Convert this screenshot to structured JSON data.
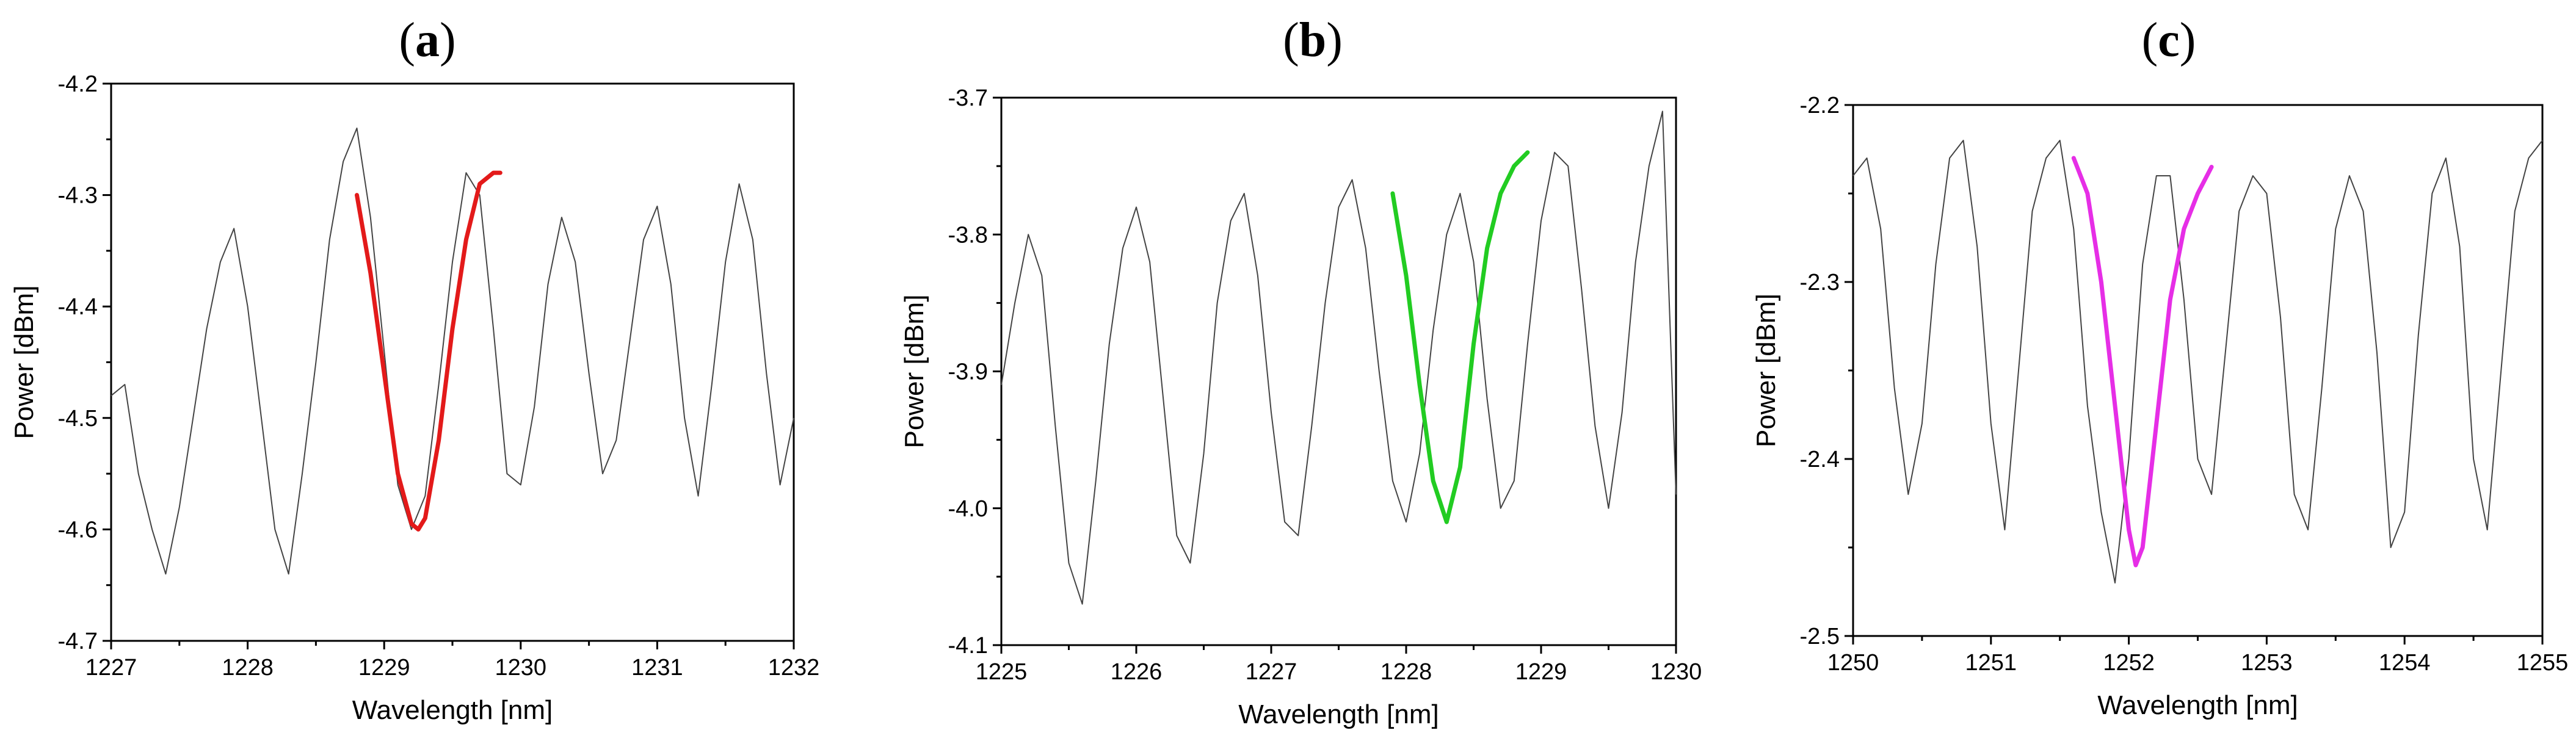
{
  "chart_data": [
    {
      "type": "line",
      "panel_label": "a",
      "xlabel": "Wavelength [nm]",
      "ylabel": "Power [dBm]",
      "xlim": [
        1227,
        1232
      ],
      "ylim": [
        -4.7,
        -4.2
      ],
      "xticks": [
        1227,
        1228,
        1229,
        1230,
        1231,
        1232
      ],
      "yticks": [
        -4.7,
        -4.6,
        -4.5,
        -4.4,
        -4.3,
        -4.2
      ],
      "xtick_labels": [
        "1227",
        "1228",
        "1229",
        "1230",
        "1231",
        "1232"
      ],
      "ytick_labels": [
        "-4.7",
        "-4.6",
        "-4.5",
        "-4.4",
        "-4.3",
        "-4.2"
      ],
      "grid": false,
      "series": [
        {
          "role": "measured",
          "color": "#444444",
          "x": [
            1227.0,
            1227.1,
            1227.2,
            1227.3,
            1227.4,
            1227.5,
            1227.6,
            1227.7,
            1227.8,
            1227.9,
            1228.0,
            1228.1,
            1228.2,
            1228.3,
            1228.4,
            1228.5,
            1228.6,
            1228.7,
            1228.8,
            1228.9,
            1229.0,
            1229.1,
            1229.2,
            1229.3,
            1229.4,
            1229.5,
            1229.6,
            1229.7,
            1229.8,
            1229.9,
            1230.0,
            1230.1,
            1230.2,
            1230.3,
            1230.4,
            1230.5,
            1230.6,
            1230.7,
            1230.8,
            1230.9,
            1231.0,
            1231.1,
            1231.2,
            1231.3,
            1231.4,
            1231.5,
            1231.6,
            1231.7,
            1231.8,
            1231.9,
            1232.0
          ],
          "y": [
            -4.48,
            -4.47,
            -4.55,
            -4.6,
            -4.64,
            -4.58,
            -4.5,
            -4.42,
            -4.36,
            -4.33,
            -4.4,
            -4.5,
            -4.6,
            -4.64,
            -4.55,
            -4.45,
            -4.34,
            -4.27,
            -4.24,
            -4.32,
            -4.44,
            -4.56,
            -4.6,
            -4.57,
            -4.47,
            -4.36,
            -4.28,
            -4.3,
            -4.42,
            -4.55,
            -4.56,
            -4.49,
            -4.38,
            -4.32,
            -4.36,
            -4.46,
            -4.55,
            -4.52,
            -4.43,
            -4.34,
            -4.31,
            -4.38,
            -4.5,
            -4.57,
            -4.47,
            -4.36,
            -4.29,
            -4.34,
            -4.46,
            -4.56,
            -4.5
          ]
        },
        {
          "role": "fit",
          "color": "#e31a1a",
          "x": [
            1228.8,
            1228.9,
            1229.0,
            1229.1,
            1229.2,
            1229.25,
            1229.3,
            1229.4,
            1229.5,
            1229.6,
            1229.7,
            1229.8,
            1229.85
          ],
          "y": [
            -4.3,
            -4.37,
            -4.46,
            -4.55,
            -4.595,
            -4.6,
            -4.59,
            -4.52,
            -4.42,
            -4.34,
            -4.29,
            -4.28,
            -4.28
          ]
        }
      ]
    },
    {
      "type": "line",
      "panel_label": "b",
      "xlabel": "Wavelength [nm]",
      "ylabel": "Power [dBm]",
      "xlim": [
        1225,
        1230
      ],
      "ylim": [
        -4.1,
        -3.7
      ],
      "xticks": [
        1225,
        1226,
        1227,
        1228,
        1229,
        1230
      ],
      "yticks": [
        -4.1,
        -4.0,
        -3.9,
        -3.8,
        -3.7
      ],
      "xtick_labels": [
        "1225",
        "1226",
        "1227",
        "1228",
        "1229",
        "1230"
      ],
      "ytick_labels": [
        "-4.1",
        "-4.0",
        "-3.9",
        "-3.8",
        "-3.7"
      ],
      "grid": false,
      "series": [
        {
          "role": "measured",
          "color": "#444444",
          "x": [
            1225.0,
            1225.1,
            1225.2,
            1225.3,
            1225.4,
            1225.5,
            1225.6,
            1225.7,
            1225.8,
            1225.9,
            1226.0,
            1226.1,
            1226.2,
            1226.3,
            1226.4,
            1226.5,
            1226.6,
            1226.7,
            1226.8,
            1226.9,
            1227.0,
            1227.1,
            1227.2,
            1227.3,
            1227.4,
            1227.5,
            1227.6,
            1227.7,
            1227.8,
            1227.9,
            1228.0,
            1228.1,
            1228.2,
            1228.3,
            1228.4,
            1228.5,
            1228.6,
            1228.7,
            1228.8,
            1228.9,
            1229.0,
            1229.1,
            1229.2,
            1229.3,
            1229.4,
            1229.5,
            1229.6,
            1229.7,
            1229.8,
            1229.9,
            1230.0
          ],
          "y": [
            -3.91,
            -3.85,
            -3.8,
            -3.83,
            -3.94,
            -4.04,
            -4.07,
            -3.98,
            -3.88,
            -3.81,
            -3.78,
            -3.82,
            -3.92,
            -4.02,
            -4.04,
            -3.96,
            -3.85,
            -3.79,
            -3.77,
            -3.83,
            -3.93,
            -4.01,
            -4.02,
            -3.94,
            -3.85,
            -3.78,
            -3.76,
            -3.81,
            -3.9,
            -3.98,
            -4.01,
            -3.96,
            -3.87,
            -3.8,
            -3.77,
            -3.82,
            -3.92,
            -4.0,
            -3.98,
            -3.88,
            -3.79,
            -3.74,
            -3.75,
            -3.84,
            -3.94,
            -4.0,
            -3.93,
            -3.82,
            -3.75,
            -3.71,
            -3.99
          ]
        },
        {
          "role": "fit",
          "color": "#22cc22",
          "x": [
            1227.9,
            1228.0,
            1228.1,
            1228.2,
            1228.3,
            1228.4,
            1228.5,
            1228.6,
            1228.7,
            1228.8,
            1228.9
          ],
          "y": [
            -3.77,
            -3.83,
            -3.91,
            -3.98,
            -4.01,
            -3.97,
            -3.88,
            -3.81,
            -3.77,
            -3.75,
            -3.74
          ]
        }
      ]
    },
    {
      "type": "line",
      "panel_label": "c",
      "xlabel": "Wavelength [nm]",
      "ylabel": "Power [dBm]",
      "xlim": [
        1250,
        1255
      ],
      "ylim": [
        -2.5,
        -2.2
      ],
      "xticks": [
        1250,
        1251,
        1252,
        1253,
        1254,
        1255
      ],
      "yticks": [
        -2.5,
        -2.4,
        -2.3,
        -2.2
      ],
      "xtick_labels": [
        "1250",
        "1251",
        "1252",
        "1253",
        "1254",
        "1255"
      ],
      "ytick_labels": [
        "-2.5",
        "-2.4",
        "-2.3",
        "-2.2"
      ],
      "grid": false,
      "series": [
        {
          "role": "measured",
          "color": "#444444",
          "x": [
            1250.0,
            1250.1,
            1250.2,
            1250.3,
            1250.4,
            1250.5,
            1250.6,
            1250.7,
            1250.8,
            1250.9,
            1251.0,
            1251.1,
            1251.2,
            1251.3,
            1251.4,
            1251.5,
            1251.6,
            1251.7,
            1251.8,
            1251.9,
            1252.0,
            1252.1,
            1252.2,
            1252.3,
            1252.4,
            1252.5,
            1252.6,
            1252.7,
            1252.8,
            1252.9,
            1253.0,
            1253.1,
            1253.2,
            1253.3,
            1253.4,
            1253.5,
            1253.6,
            1253.7,
            1253.8,
            1253.9,
            1254.0,
            1254.1,
            1254.2,
            1254.3,
            1254.4,
            1254.5,
            1254.6,
            1254.7,
            1254.8,
            1254.9,
            1255.0
          ],
          "y": [
            -2.24,
            -2.23,
            -2.27,
            -2.36,
            -2.42,
            -2.38,
            -2.29,
            -2.23,
            -2.22,
            -2.28,
            -2.38,
            -2.44,
            -2.35,
            -2.26,
            -2.23,
            -2.22,
            -2.27,
            -2.37,
            -2.43,
            -2.47,
            -2.4,
            -2.29,
            -2.24,
            -2.24,
            -2.31,
            -2.4,
            -2.42,
            -2.34,
            -2.26,
            -2.24,
            -2.25,
            -2.32,
            -2.42,
            -2.44,
            -2.36,
            -2.27,
            -2.24,
            -2.26,
            -2.34,
            -2.45,
            -2.43,
            -2.33,
            -2.25,
            -2.23,
            -2.28,
            -2.4,
            -2.44,
            -2.35,
            -2.26,
            -2.23,
            -2.22
          ]
        },
        {
          "role": "fit",
          "color": "#e62ee6",
          "x": [
            1251.6,
            1251.7,
            1251.8,
            1251.9,
            1252.0,
            1252.05,
            1252.1,
            1252.2,
            1252.3,
            1252.4,
            1252.5,
            1252.6
          ],
          "y": [
            -2.23,
            -2.25,
            -2.3,
            -2.37,
            -2.44,
            -2.46,
            -2.45,
            -2.38,
            -2.31,
            -2.27,
            -2.25,
            -2.235
          ]
        }
      ]
    }
  ]
}
